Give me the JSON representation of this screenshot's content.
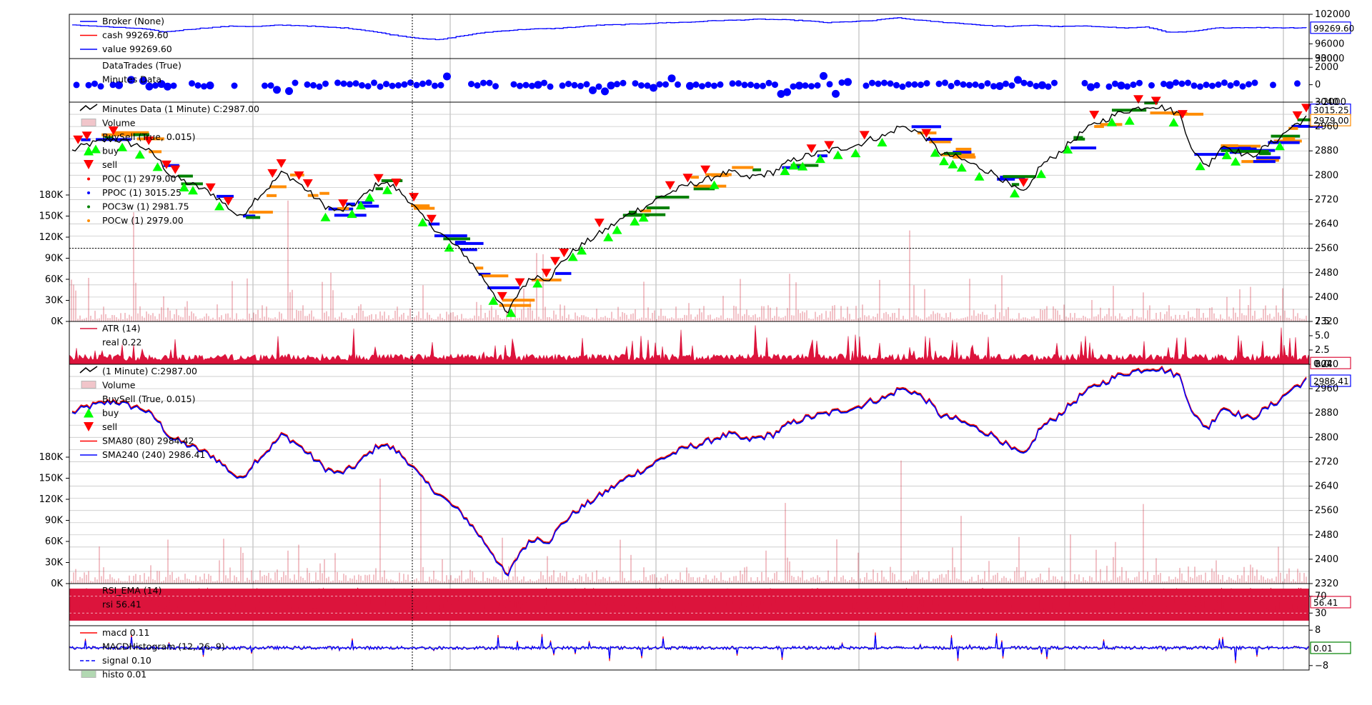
{
  "colors": {
    "value_line": "#0000ff",
    "cash_line": "#ff0000",
    "trade_dot": "#0000ff",
    "price_line": "#000000",
    "volume_bar": "#d2273a",
    "atr_line": "#dc143c",
    "buy_marker": "#00ff00",
    "sell_marker": "#ff0000",
    "poc": "#ff0000",
    "ppoc": "#0000ff",
    "poc3w": "#008000",
    "pocw": "#ff8c00",
    "sma80": "#ff0000",
    "sma240": "#0000ff",
    "rsi_fill": "#dc143c",
    "macd": "#ff0000",
    "signal": "#0000ff",
    "histo": "#7fbf7f",
    "grid": "#b0b0b0"
  },
  "chart_data": [
    {
      "id": "broker",
      "type": "line",
      "legend": [
        "Broker (None)",
        "cash 99269.60",
        "value 99269.60"
      ],
      "y_ticks": [
        "102000",
        "96000",
        "93000"
      ],
      "ylim": [
        93000,
        102000
      ],
      "last_value_tag": "99269.60",
      "series": [
        {
          "name": "value",
          "values": [
            99800,
            99600,
            99300,
            99100,
            98400,
            98900,
            99300,
            99600,
            99500,
            99800,
            99700,
            99400,
            99200,
            98600,
            97800,
            97200,
            96800,
            97600,
            98300,
            98700,
            99000,
            99100,
            99400,
            99800,
            99900,
            100100,
            100300,
            100400,
            100700,
            100800,
            101000,
            100900,
            100700,
            100300,
            100500,
            100700,
            101300,
            100800,
            100400,
            100100,
            99700,
            99500,
            99800,
            99500,
            99600,
            99500,
            99200,
            99400,
            98300,
            98500,
            99200,
            99300,
            99300,
            99250,
            99269.6
          ]
        },
        {
          "name": "cash",
          "values": [
            99269.6
          ]
        }
      ]
    },
    {
      "id": "datatrades",
      "type": "scatter",
      "legend": [
        "DataTrades (True)",
        "Minutes Data"
      ],
      "y_ticks": [
        "3000",
        "2000",
        "0",
        "−2000"
      ],
      "ylim": [
        -2000,
        3000
      ]
    },
    {
      "id": "price",
      "type": "line",
      "legend": [
        "Minutes Data (1 Minute) C:2987.00",
        "Volume",
        "BuySell (True, 0.015)",
        "buy",
        "sell",
        "POC (1) 2979.00",
        "PPOC (1) 3015.25",
        "POC3w (1) 2981.75",
        "POCw (1) 2979.00"
      ],
      "y_ticks": [
        "3040",
        "2960",
        "2880",
        "2800",
        "2720",
        "2640",
        "2560",
        "2480",
        "2400",
        "2320"
      ],
      "ylim": [
        2320,
        3040
      ],
      "volume_ticks": [
        "180K",
        "150K",
        "120K",
        "90K",
        "60K",
        "30K",
        "0K"
      ],
      "volume_lim": [
        0,
        180000
      ],
      "tags": [
        {
          "text": "3015.25",
          "border": "#0000ff"
        },
        {
          "text": "2979.00",
          "border": "#ff8c00"
        }
      ],
      "close_values": [
        2880,
        2900,
        2910,
        2920,
        2905,
        2895,
        2860,
        2800,
        2780,
        2760,
        2740,
        2700,
        2660,
        2720,
        2760,
        2810,
        2780,
        2740,
        2700,
        2680,
        2700,
        2740,
        2780,
        2760,
        2720,
        2660,
        2620,
        2580,
        2540,
        2480,
        2420,
        2340,
        2430,
        2470,
        2460,
        2520,
        2560,
        2590,
        2620,
        2650,
        2680,
        2700,
        2730,
        2750,
        2770,
        2780,
        2800,
        2810,
        2790,
        2800,
        2810,
        2840,
        2860,
        2870,
        2880,
        2890,
        2900,
        2920,
        2930,
        2960,
        2950,
        2920,
        2870,
        2860,
        2840,
        2820,
        2800,
        2760,
        2740,
        2830,
        2860,
        2900,
        2940,
        2970,
        2990,
        3010,
        3020,
        3030,
        3020,
        3000,
        2870,
        2830,
        2900,
        2880,
        2860,
        2890,
        2920,
        2960,
        2987
      ]
    },
    {
      "id": "atr",
      "type": "area",
      "legend": [
        "ATR (14)",
        "real 0.22"
      ],
      "y_ticks": [
        "7.5",
        "5.0",
        "2.5",
        "0.0"
      ],
      "ylim": [
        0,
        7.5
      ],
      "last_value_tag": "0.22"
    },
    {
      "id": "sma",
      "type": "line",
      "legend": [
        "(1 Minute) C:2987.00",
        "Volume",
        "BuySell (True, 0.015)",
        "buy",
        "sell",
        "SMA80 (80) 2984.42",
        "SMA240 (240) 2986.41"
      ],
      "y_ticks": [
        "3040",
        "2960",
        "2880",
        "2800",
        "2720",
        "2640",
        "2560",
        "2480",
        "2400",
        "2320"
      ],
      "ylim": [
        2320,
        3040
      ],
      "volume_ticks": [
        "180K",
        "150K",
        "120K",
        "90K",
        "60K",
        "30K",
        "0K"
      ],
      "last_value_tag": "2986.41"
    },
    {
      "id": "rsi",
      "type": "area",
      "legend": [
        "RSI_EMA (14)",
        "rsi 56.41"
      ],
      "y_ticks": [
        "70",
        "30"
      ],
      "ylim": [
        0,
        100
      ],
      "last_value_tag": "56.41"
    },
    {
      "id": "macd",
      "type": "line",
      "legend": [
        "macd 0.11",
        "MACDHistogram (12, 26, 9)",
        "signal 0.10",
        "histo 0.01"
      ],
      "y_ticks": [
        "8",
        "−8"
      ],
      "ylim": [
        -10,
        10
      ],
      "last_value_tag": "0.01"
    }
  ]
}
